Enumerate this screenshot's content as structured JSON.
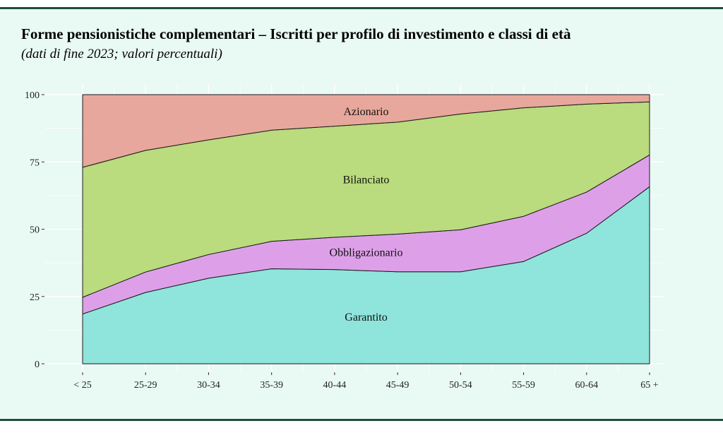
{
  "title": "Forme pensionistiche complementari – Iscritti per profilo di investimento e classi di età",
  "subtitle": "(dati di fine 2023; valori percentuali)",
  "colors": {
    "frame_line": "#1f4d3b",
    "panel_bg": "#e9f9f3",
    "plot_bg": "#e9f9f3",
    "gridline": "#ffffff",
    "Garantito": "#8fe4db",
    "Obbligazionario": "#dda0e8",
    "Bilanciato": "#badb7e",
    "Azionario": "#e8a79c"
  },
  "chart_data": {
    "type": "area",
    "stacked": true,
    "title": "Forme pensionistiche complementari – Iscritti per profilo di investimento e classi di età",
    "subtitle": "(dati di fine 2023; valori percentuali)",
    "categories": [
      "< 25",
      "25-29",
      "30-34",
      "35-39",
      "40-44",
      "45-49",
      "50-54",
      "55-59",
      "60-64",
      "65 +"
    ],
    "series": [
      {
        "name": "Garantito",
        "values": [
          18.5,
          26.5,
          31.8,
          35.3,
          35.0,
          34.2,
          34.2,
          38.0,
          48.5,
          65.8
        ]
      },
      {
        "name": "Obbligazionario",
        "values": [
          6.2,
          7.6,
          8.8,
          10.2,
          12.0,
          14.0,
          15.6,
          16.8,
          15.3,
          11.8
        ]
      },
      {
        "name": "Bilanciato",
        "values": [
          48.3,
          45.2,
          42.6,
          41.3,
          41.3,
          41.6,
          43.0,
          40.3,
          32.7,
          19.7
        ]
      },
      {
        "name": "Azionario",
        "values": [
          27.0,
          20.7,
          16.8,
          13.2,
          11.7,
          10.2,
          7.2,
          4.9,
          3.5,
          2.7
        ]
      }
    ],
    "area_labels": [
      {
        "series": "Azionario",
        "text": "Azionario"
      },
      {
        "series": "Bilanciato",
        "text": "Bilanciato"
      },
      {
        "series": "Obbligazionario",
        "text": "Obbligazionario"
      },
      {
        "series": "Garantito",
        "text": "Garantito"
      }
    ],
    "ylim": [
      0,
      100
    ],
    "yticks": [
      0,
      25,
      50,
      75,
      100
    ],
    "xlabel": "",
    "ylabel": "",
    "grid": true,
    "legend": "none"
  }
}
